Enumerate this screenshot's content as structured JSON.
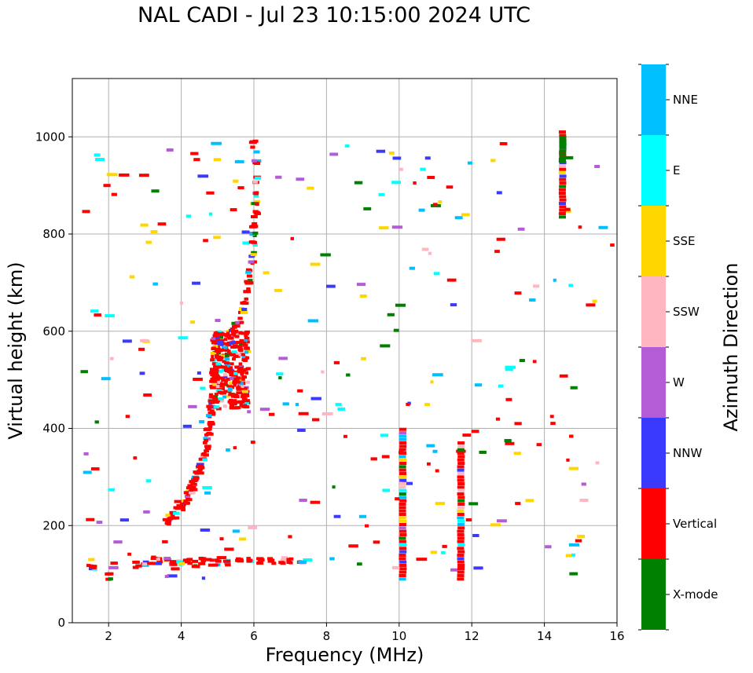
{
  "chart_data": {
    "type": "scatter",
    "title": "NAL CADI - Jul 23 10:15:00 2024 UTC",
    "xlabel": "Frequency (MHz)",
    "ylabel": "Virtual height (km)",
    "xlim": [
      1,
      16
    ],
    "ylim": [
      0,
      1120
    ],
    "xticks": [
      2,
      4,
      6,
      8,
      10,
      12,
      14,
      16
    ],
    "yticks": [
      0,
      200,
      400,
      600,
      800,
      1000
    ],
    "grid": true,
    "colorbar": {
      "label": "Azimuth Direction",
      "categories": [
        {
          "name": "X-mode",
          "color": "#008000"
        },
        {
          "name": "Vertical",
          "color": "#ff0000"
        },
        {
          "name": "NNW",
          "color": "#3a3aff"
        },
        {
          "name": "W",
          "color": "#b45cd6"
        },
        {
          "name": "SSW",
          "color": "#ffb6c1"
        },
        {
          "name": "SSE",
          "color": "#ffd700"
        },
        {
          "name": "E",
          "color": "#00ffff"
        },
        {
          "name": "NNE",
          "color": "#00bfff"
        }
      ]
    },
    "series": [
      {
        "name": "O-trace lower",
        "points": [
          [
            3.6,
            210
          ],
          [
            3.7,
            215
          ],
          [
            3.8,
            222
          ],
          [
            3.9,
            230
          ],
          [
            4.0,
            238
          ],
          [
            4.05,
            245
          ],
          [
            4.1,
            252
          ],
          [
            4.15,
            258
          ],
          [
            4.2,
            265
          ],
          [
            4.25,
            272
          ],
          [
            4.3,
            280
          ],
          [
            4.35,
            288
          ],
          [
            4.4,
            295
          ],
          [
            4.45,
            305
          ],
          [
            4.5,
            315
          ],
          [
            4.55,
            325
          ],
          [
            4.6,
            338
          ],
          [
            4.65,
            350
          ],
          [
            4.7,
            365
          ],
          [
            4.72,
            380
          ],
          [
            4.75,
            395
          ],
          [
            4.78,
            410
          ],
          [
            4.8,
            425
          ],
          [
            4.82,
            440
          ],
          [
            4.85,
            455
          ],
          [
            4.88,
            470
          ],
          [
            4.9,
            490
          ],
          [
            4.92,
            510
          ],
          [
            4.95,
            530
          ],
          [
            4.97,
            550
          ],
          [
            5.0,
            570
          ],
          [
            5.02,
            590
          ]
        ]
      },
      {
        "name": "Spread F cluster",
        "region": {
          "fmin": 4.85,
          "fmax": 5.85,
          "hmin": 440,
          "hmax": 600
        }
      },
      {
        "name": "Upper trace",
        "points": [
          [
            5.4,
            600
          ],
          [
            5.5,
            610
          ],
          [
            5.6,
            620
          ],
          [
            5.7,
            640
          ],
          [
            5.75,
            660
          ],
          [
            5.8,
            680
          ],
          [
            5.85,
            700
          ],
          [
            5.9,
            720
          ],
          [
            5.92,
            740
          ],
          [
            5.95,
            760
          ],
          [
            5.98,
            780
          ],
          [
            6.0,
            800
          ],
          [
            6.02,
            820
          ],
          [
            6.05,
            840
          ],
          [
            6.08,
            860
          ],
          [
            6.1,
            880
          ],
          [
            6.1,
            910
          ],
          [
            6.05,
            950
          ],
          [
            6.0,
            985
          ]
        ]
      },
      {
        "name": "E-layer trace",
        "points": [
          [
            1.5,
            115
          ],
          [
            1.6,
            110
          ],
          [
            2.0,
            95
          ],
          [
            2.8,
            120
          ],
          [
            3.0,
            125
          ],
          [
            3.2,
            128
          ],
          [
            3.4,
            125
          ],
          [
            3.6,
            127
          ],
          [
            3.8,
            124
          ],
          [
            4.0,
            125
          ],
          [
            4.2,
            124
          ],
          [
            4.4,
            122
          ],
          [
            4.6,
            126
          ],
          [
            4.8,
            125
          ],
          [
            5.0,
            124
          ],
          [
            5.3,
            125
          ],
          [
            5.6,
            126
          ],
          [
            5.9,
            128
          ],
          [
            6.2,
            127
          ],
          [
            6.5,
            128
          ],
          [
            6.8,
            128
          ],
          [
            7.0,
            129
          ],
          [
            7.3,
            128
          ]
        ]
      },
      {
        "name": "Columns",
        "columns": [
          {
            "f": 10.1,
            "hmin": 90,
            "hmax": 400,
            "color": "#ff0000"
          },
          {
            "f": 11.7,
            "hmin": 90,
            "hmax": 370,
            "color": "#ff0000"
          },
          {
            "f": 14.5,
            "hmin": 835,
            "hmax": 1010,
            "color": "#ff0000"
          },
          {
            "f": 14.5,
            "hmin": 950,
            "hmax": 1005,
            "color": "#008000"
          }
        ]
      }
    ]
  }
}
